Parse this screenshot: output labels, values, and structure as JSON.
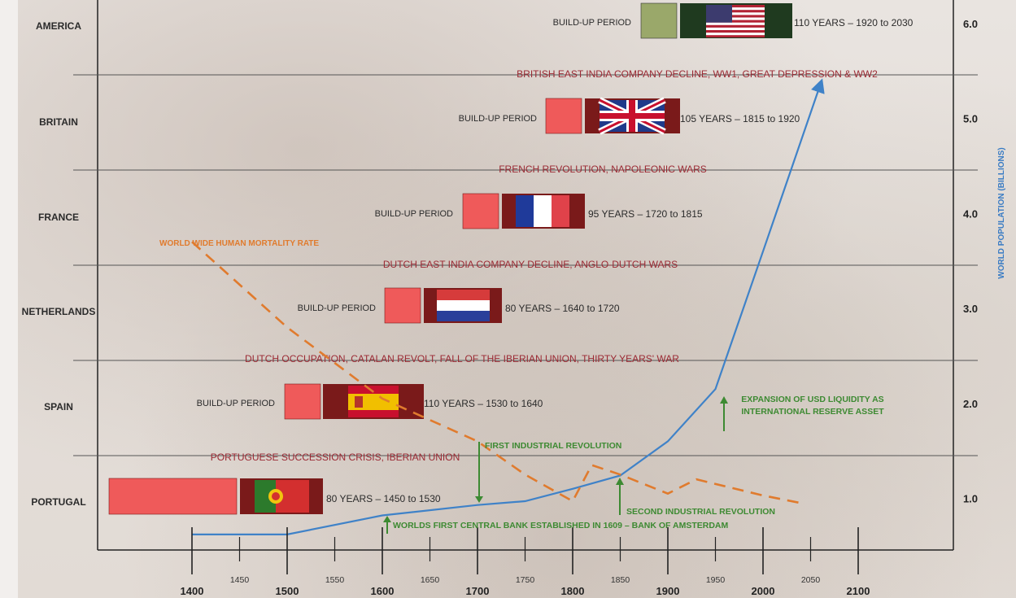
{
  "chart_data": {
    "type": "line",
    "rows": [
      {
        "name": "AMERICA",
        "event": "",
        "buildup_label": "BUILD-UP PERIOD",
        "period": "110 YEARS – 1920 to 2030",
        "flag": "usa-flag"
      },
      {
        "name": "BRITAIN",
        "event": "BRITISH EAST INDIA COMPANY DECLINE, WW1, GREAT DEPRESSION & WW2",
        "buildup_label": "BUILD-UP PERIOD",
        "period": "105 YEARS – 1815 to 1920",
        "flag": "uk-flag"
      },
      {
        "name": "FRANCE",
        "event": "FRENCH REVOLUTION, NAPOLEONIC WARS",
        "buildup_label": "BUILD-UP PERIOD",
        "period": "95 YEARS – 1720 to 1815",
        "flag": "france-flag"
      },
      {
        "name": "NETHERLANDS",
        "event": "DUTCH EAST INDIA COMPANY DECLINE, ANGLO-DUTCH WARS",
        "buildup_label": "BUILD-UP PERIOD",
        "period": "80 YEARS – 1640 to 1720",
        "flag": "netherlands-flag"
      },
      {
        "name": "SPAIN",
        "event": "DUTCH OCCUPATION, CATALAN REVOLT, FALL OF THE IBERIAN UNION, THIRTY YEARS' WAR",
        "buildup_label": "BUILD-UP PERIOD",
        "period": "110 YEARS – 1530 to 1640",
        "flag": "spain-flag"
      },
      {
        "name": "PORTUGAL",
        "event": "PORTUGUESE SUCCESSION CRISIS, IBERIAN UNION",
        "buildup_label": "",
        "period": "80 YEARS – 1450 to 1530",
        "flag": "portugal-flag"
      }
    ],
    "x_ticks_major": [
      "1400",
      "1500",
      "1600",
      "1700",
      "1800",
      "1900",
      "2000",
      "2100"
    ],
    "x_ticks_minor": [
      "1450",
      "1550",
      "1650",
      "1750",
      "1850",
      "1950",
      "2050"
    ],
    "y_ticks": [
      "1.0",
      "2.0",
      "3.0",
      "4.0",
      "5.0",
      "6.0"
    ],
    "ylabel": "WORLD POPULATION (BILLIONS)",
    "xlim": [
      1400,
      2100
    ],
    "ylim": [
      0.4,
      6.0
    ],
    "series": [
      {
        "name": "",
        "color": "#3f82c8",
        "x": [
          1400,
          1500,
          1600,
          1700,
          1750,
          1800,
          1850,
          1900,
          1950,
          2000,
          2060
        ],
        "y": [
          0.62,
          0.62,
          0.82,
          0.93,
          0.97,
          1.1,
          1.24,
          1.6,
          2.15,
          3.6,
          5.35
        ]
      },
      {
        "name": "WORLD WIDE HUMAN MORTALITY RATE",
        "color": "#e07b2e",
        "x": [
          1400,
          1500,
          1600,
          1700,
          1750,
          1800,
          1820,
          1850,
          1900,
          1930,
          2000,
          2040
        ],
        "y": [
          3.7,
          2.8,
          2.05,
          1.6,
          1.25,
          0.97,
          1.35,
          1.25,
          1.05,
          1.2,
          1.03,
          0.95
        ]
      }
    ],
    "annotations": [
      {
        "text": "FIRST INDUSTRIAL REVOLUTION",
        "color": "#3d8a32"
      },
      {
        "text": "SECOND INDUSTRIAL REVOLUTION",
        "color": "#3d8a32"
      },
      {
        "text": "WORLDS FIRST CENTRAL BANK ESTABLISHED IN 1609 – BANK OF AMSTERDAM",
        "color": "#3d8a32"
      },
      {
        "text": "EXPANSION OF USD LIQUIDITY AS",
        "color": "#3d8a32"
      },
      {
        "text": "INTERNATIONAL RESERVE ASSET",
        "color": "#3d8a32"
      }
    ],
    "colors": {
      "buildup": "#ef5a5a",
      "flag_frame": "#7a1a1a",
      "usa_buildup": "#9aa86a",
      "usa_frame": "#1f3a1f"
    }
  }
}
